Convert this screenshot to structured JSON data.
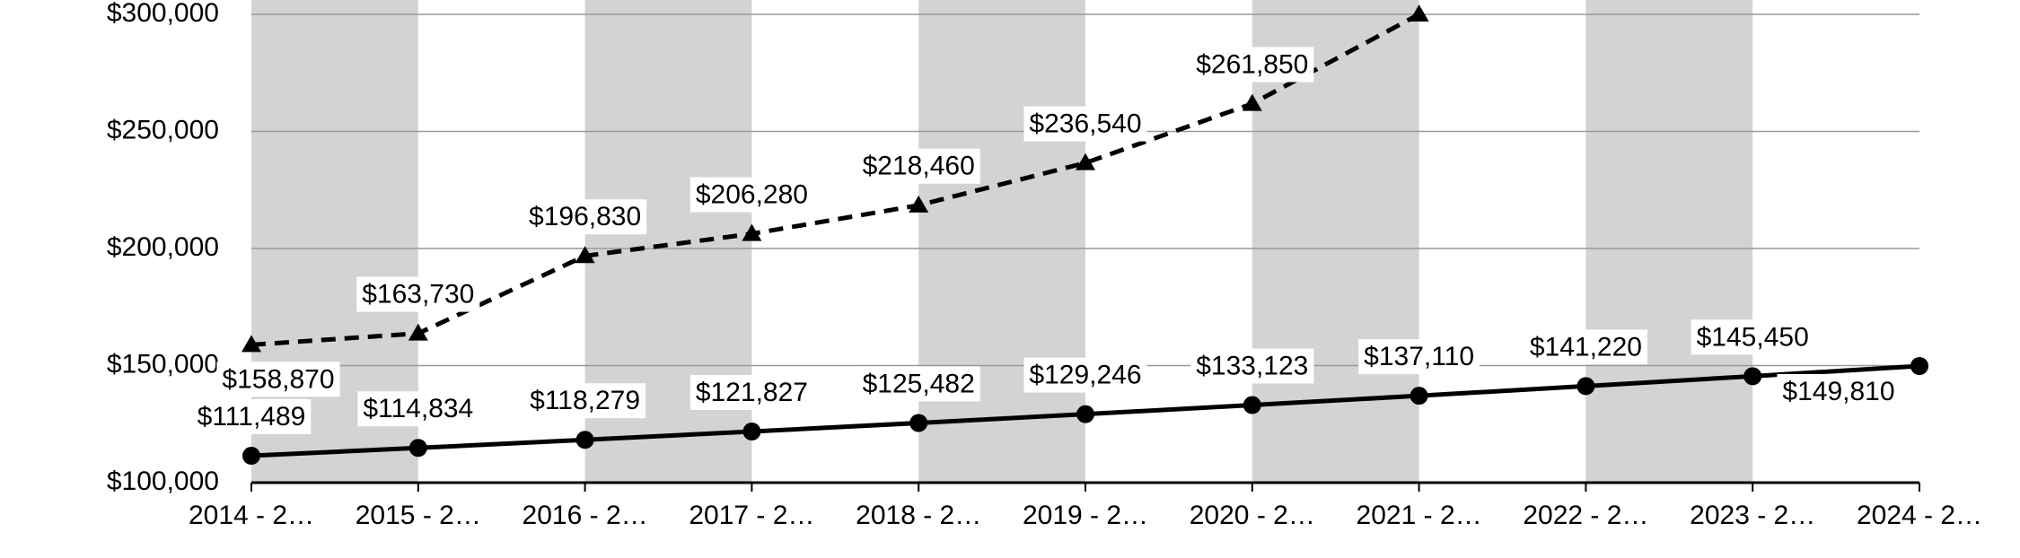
{
  "chart_data": {
    "type": "line",
    "categories": [
      "2014 - 2…",
      "2015 - 2…",
      "2016 - 2…",
      "2017 - 2…",
      "2018 - 2…",
      "2019 - 2…",
      "2020 - 2…",
      "2021 - 2…",
      "2022 - 2…",
      "2023 - 2…",
      "2024 - 2…"
    ],
    "series": [
      {
        "color": "#000000",
        "dashed": true,
        "marker": "triangle",
        "values": [
          158870,
          163730,
          196830,
          206280,
          218460,
          236540,
          261850,
          300000,
          null,
          null,
          null
        ],
        "value_labels": [
          "$158,870",
          "$163,730",
          "$196,830",
          "$206,280",
          "$218,460",
          "$236,540",
          "$261,850",
          null,
          null,
          null,
          null
        ]
      },
      {
        "color": "#000000",
        "dashed": false,
        "marker": "circle",
        "values": [
          111489,
          114834,
          118279,
          121827,
          125482,
          129246,
          133123,
          137110,
          141220,
          145450,
          149810
        ],
        "value_labels": [
          "$111,489",
          "$114,834",
          "$118,279",
          "$121,827",
          "$125,482",
          "$129,246",
          "$133,123",
          "$137,110",
          "$141,220",
          "$145,450",
          "$149,810"
        ]
      }
    ],
    "ylim": [
      100000,
      300000
    ],
    "yticks": [
      {
        "value": 100000,
        "label": "$100,000"
      },
      {
        "value": 150000,
        "label": "$150,000"
      },
      {
        "value": 200000,
        "label": "$200,000"
      },
      {
        "value": 250000,
        "label": "$250,000"
      },
      {
        "value": 300000,
        "label": "$300,000"
      }
    ],
    "grid": true
  }
}
